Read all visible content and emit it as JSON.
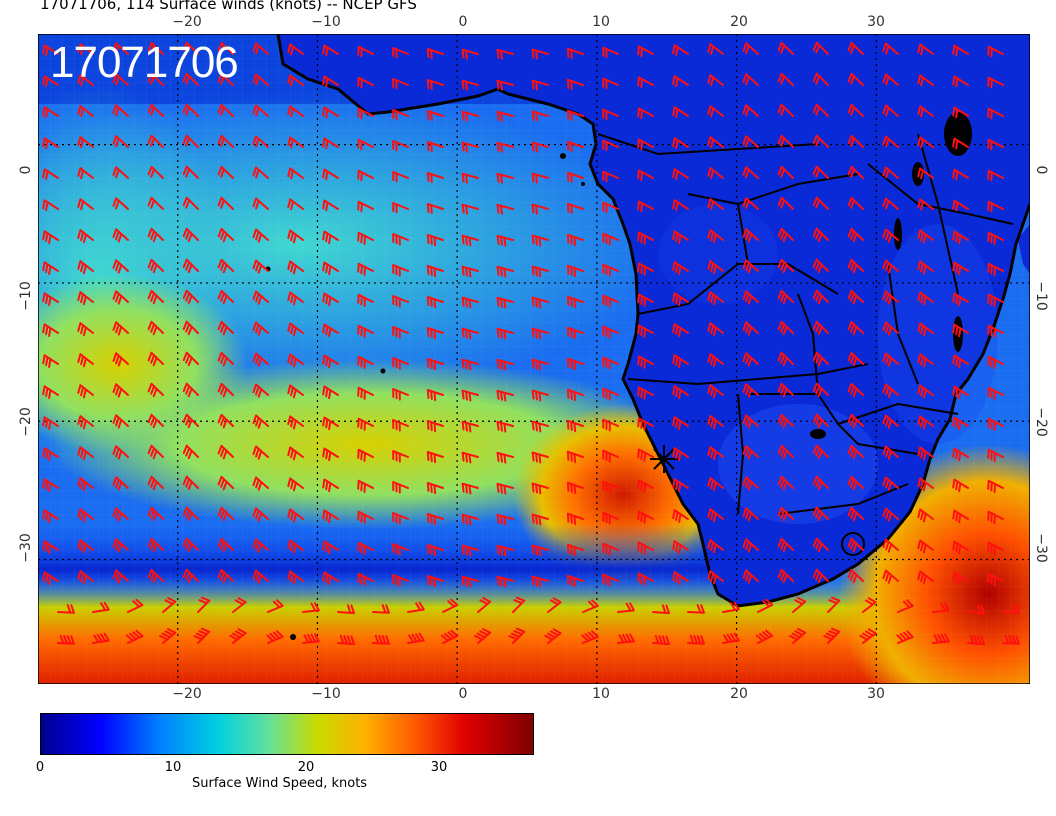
{
  "title": "17071706, 114 Surface winds (knots) -- NCEP GFS",
  "stamp": "17071706",
  "axes": {
    "lon_range": [
      -30,
      41
    ],
    "lat_range": [
      -39,
      8
    ],
    "lon_ticks": [
      "−20",
      "−10",
      "0",
      "10",
      "20",
      "30"
    ],
    "lat_ticks": [
      "0",
      "−10",
      "−20",
      "−30"
    ]
  },
  "colorbar": {
    "label": "Surface Wind Speed, knots",
    "ticks": [
      "0",
      "10",
      "20",
      "30"
    ],
    "range": [
      0,
      37
    ]
  },
  "colors": {
    "ocean_calm": "#0030d0",
    "ocean_moderate": "#30c8e0",
    "ocean_strong": "#e0c000",
    "ocean_gale": "#d02000",
    "land": "#0a2ad8",
    "barb": "#ff1010",
    "coastline": "#000000",
    "grid": "#000000"
  }
}
